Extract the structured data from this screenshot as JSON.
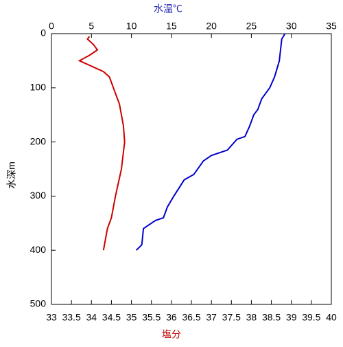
{
  "chart_data": {
    "type": "profile",
    "ylabel": "水深m",
    "ylim": [
      0,
      500
    ],
    "yticks": [
      0,
      100,
      200,
      300,
      400,
      500
    ],
    "y_inverted": true,
    "x2label": "水温℃",
    "x2label_color": "#1f1fb4",
    "x2lim": [
      0,
      35
    ],
    "x2ticks": [
      0,
      5,
      10,
      15,
      20,
      25,
      30,
      35
    ],
    "xlabel": "塩分",
    "xlabel_color": "#c00000",
    "xlim": [
      33,
      40
    ],
    "xticks": [
      33,
      33.5,
      34,
      34.5,
      35,
      35.5,
      36,
      36.5,
      37,
      37.5,
      38,
      38.5,
      39,
      39.5,
      40
    ],
    "series": [
      {
        "color": "#0000cc",
        "axis": "x2",
        "values": [
          29.2,
          29.0,
          28.8,
          28.5,
          28.3,
          27.9,
          27.3,
          26.3,
          25.8,
          25.3,
          24.8,
          24.2,
          23.2,
          22.0,
          20.0,
          19.0,
          17.8,
          16.6,
          15.3,
          14.5,
          14.0,
          13.0,
          12.5,
          11.5,
          11.3,
          10.6
        ],
        "depth": [
          0,
          5,
          10,
          50,
          60,
          80,
          100,
          120,
          140,
          150,
          170,
          190,
          195,
          215,
          225,
          235,
          260,
          270,
          300,
          320,
          340,
          345,
          350,
          360,
          390,
          400
        ]
      },
      {
        "color": "#cc0000",
        "axis": "x",
        "values": [
          33.95,
          33.9,
          34.05,
          34.15,
          33.95,
          33.7,
          33.85,
          34.0,
          34.3,
          34.45,
          34.55,
          34.7,
          34.8,
          34.83,
          34.75,
          34.6,
          34.5,
          34.4,
          34.35,
          34.3
        ],
        "depth": [
          5,
          10,
          20,
          30,
          40,
          50,
          55,
          60,
          70,
          80,
          100,
          130,
          170,
          200,
          250,
          300,
          340,
          360,
          380,
          400
        ]
      }
    ]
  }
}
